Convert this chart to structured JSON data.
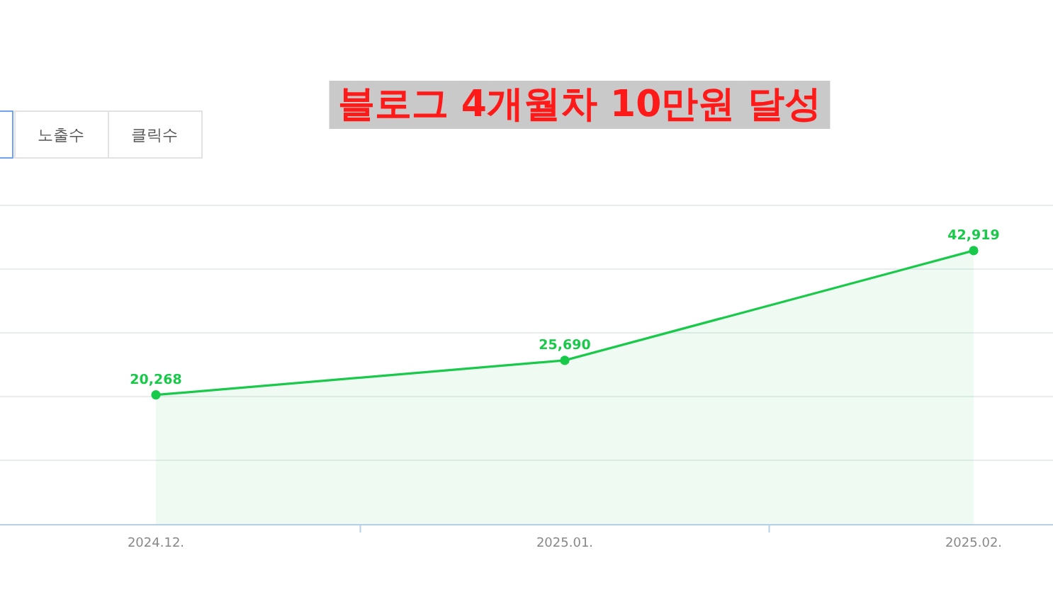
{
  "chart_data": {
    "type": "area",
    "title": "블로그 4개월차 10만원 달성",
    "annotations": [
      "노출수",
      "클릭수"
    ],
    "categories": [
      "2024.12.",
      "2025.01.",
      "2025.02."
    ],
    "series": [
      {
        "color": "#19c94a",
        "values": [
          20268,
          25690,
          42919
        ],
        "value_labels": [
          "20,268",
          "25,690",
          "42,919"
        ]
      }
    ],
    "tick_labels": "x",
    "grid": "y",
    "marker": "circle",
    "line_style": "solid"
  }
}
